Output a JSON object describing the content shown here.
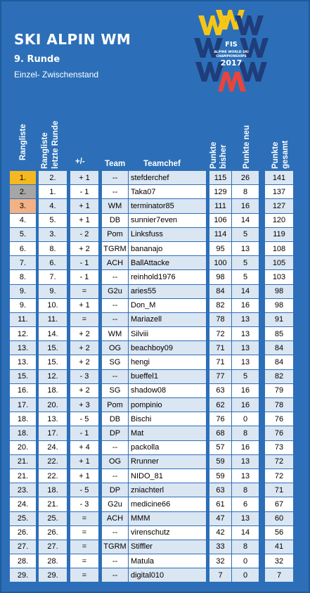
{
  "header": {
    "title": "SKI ALPIN WM",
    "round": "9. Runde",
    "subtitle": "Einzel- Zwischenstand"
  },
  "logo": {
    "top_text": "FIS",
    "line1": "ALPINE WORLD SKI",
    "line2": "CHAMPIONSHIPS",
    "year": "2017",
    "colors": {
      "w": "#f5c518",
      "m": "#e8453c",
      "ring": "#1f3d7a"
    }
  },
  "columns": {
    "rank": "Rangliste",
    "prev_rank_line1": "Rangliste",
    "prev_rank_line2": "letzte Runde",
    "diff": "+/-",
    "team": "Team",
    "chef": "Teamchef",
    "points_before_line1": "Punkte",
    "points_before_line2": "bisher",
    "points_new": "Punkte neu",
    "points_total_line1": "Punkte",
    "points_total_line2": "gesamt"
  },
  "medal_colors": {
    "gold": "#f5b820",
    "silver": "#a6a6a6",
    "bronze": "#f4b183"
  },
  "rows": [
    {
      "rank": "1.",
      "prev": "2.",
      "diff": "+ 1",
      "team": "--",
      "chef": "stefderchef",
      "before": "115",
      "new": "26",
      "total": "141",
      "medal": "gold"
    },
    {
      "rank": "2.",
      "prev": "1.",
      "diff": "- 1",
      "team": "--",
      "chef": "Taka07",
      "before": "129",
      "new": "8",
      "total": "137",
      "medal": "silver"
    },
    {
      "rank": "3.",
      "prev": "4.",
      "diff": "+ 1",
      "team": "WM",
      "chef": "terminator85",
      "before": "111",
      "new": "16",
      "total": "127",
      "medal": "bronze"
    },
    {
      "rank": "4.",
      "prev": "5.",
      "diff": "+ 1",
      "team": "DB",
      "chef": "sunnier7even",
      "before": "106",
      "new": "14",
      "total": "120",
      "medal": ""
    },
    {
      "rank": "5.",
      "prev": "3.",
      "diff": "- 2",
      "team": "Pom",
      "chef": "Linksfuss",
      "before": "114",
      "new": "5",
      "total": "119",
      "medal": ""
    },
    {
      "rank": "6.",
      "prev": "8.",
      "diff": "+ 2",
      "team": "TGRM",
      "chef": "bananajo",
      "before": "95",
      "new": "13",
      "total": "108",
      "medal": ""
    },
    {
      "rank": "7.",
      "prev": "6.",
      "diff": "- 1",
      "team": "ACH",
      "chef": "BallAttacke",
      "before": "100",
      "new": "5",
      "total": "105",
      "medal": ""
    },
    {
      "rank": "8.",
      "prev": "7.",
      "diff": "- 1",
      "team": "--",
      "chef": "reinhold1976",
      "before": "98",
      "new": "5",
      "total": "103",
      "medal": ""
    },
    {
      "rank": "9.",
      "prev": "9.",
      "diff": "=",
      "team": "G2u",
      "chef": "aries55",
      "before": "84",
      "new": "14",
      "total": "98",
      "medal": ""
    },
    {
      "rank": "9.",
      "prev": "10.",
      "diff": "+ 1",
      "team": "--",
      "chef": "Don_M",
      "before": "82",
      "new": "16",
      "total": "98",
      "medal": ""
    },
    {
      "rank": "11.",
      "prev": "11.",
      "diff": "=",
      "team": "--",
      "chef": "Mariazell",
      "before": "78",
      "new": "13",
      "total": "91",
      "medal": ""
    },
    {
      "rank": "12.",
      "prev": "14.",
      "diff": "+ 2",
      "team": "WM",
      "chef": "Silviii",
      "before": "72",
      "new": "13",
      "total": "85",
      "medal": ""
    },
    {
      "rank": "13.",
      "prev": "15.",
      "diff": "+ 2",
      "team": "OG",
      "chef": "beachboy09",
      "before": "71",
      "new": "13",
      "total": "84",
      "medal": ""
    },
    {
      "rank": "13.",
      "prev": "15.",
      "diff": "+ 2",
      "team": "SG",
      "chef": "hengi",
      "before": "71",
      "new": "13",
      "total": "84",
      "medal": ""
    },
    {
      "rank": "15.",
      "prev": "12.",
      "diff": "- 3",
      "team": "--",
      "chef": "bueffel1",
      "before": "77",
      "new": "5",
      "total": "82",
      "medal": ""
    },
    {
      "rank": "16.",
      "prev": "18.",
      "diff": "+ 2",
      "team": "SG",
      "chef": "shadow08",
      "before": "63",
      "new": "16",
      "total": "79",
      "medal": ""
    },
    {
      "rank": "17.",
      "prev": "20.",
      "diff": "+ 3",
      "team": "Pom",
      "chef": "pompinio",
      "before": "62",
      "new": "16",
      "total": "78",
      "medal": ""
    },
    {
      "rank": "18.",
      "prev": "13.",
      "diff": "- 5",
      "team": "DB",
      "chef": "Bischi",
      "before": "76",
      "new": "0",
      "total": "76",
      "medal": ""
    },
    {
      "rank": "18.",
      "prev": "17.",
      "diff": "- 1",
      "team": "DP",
      "chef": "Mat",
      "before": "68",
      "new": "8",
      "total": "76",
      "medal": ""
    },
    {
      "rank": "20.",
      "prev": "24.",
      "diff": "+ 4",
      "team": "--",
      "chef": "packolla",
      "before": "57",
      "new": "16",
      "total": "73",
      "medal": ""
    },
    {
      "rank": "21.",
      "prev": "22.",
      "diff": "+ 1",
      "team": "OG",
      "chef": "Rrunner",
      "before": "59",
      "new": "13",
      "total": "72",
      "medal": ""
    },
    {
      "rank": "21.",
      "prev": "22.",
      "diff": "+ 1",
      "team": "--",
      "chef": "NIDO_81",
      "before": "59",
      "new": "13",
      "total": "72",
      "medal": ""
    },
    {
      "rank": "23.",
      "prev": "18.",
      "diff": "- 5",
      "team": "DP",
      "chef": "zniachterl",
      "before": "63",
      "new": "8",
      "total": "71",
      "medal": ""
    },
    {
      "rank": "24.",
      "prev": "21.",
      "diff": "- 3",
      "team": "G2u",
      "chef": "medicine66",
      "before": "61",
      "new": "6",
      "total": "67",
      "medal": ""
    },
    {
      "rank": "25.",
      "prev": "25.",
      "diff": "=",
      "team": "ACH",
      "chef": "MMM",
      "before": "47",
      "new": "13",
      "total": "60",
      "medal": ""
    },
    {
      "rank": "26.",
      "prev": "26.",
      "diff": "=",
      "team": "--",
      "chef": "virenschutz",
      "before": "42",
      "new": "14",
      "total": "56",
      "medal": ""
    },
    {
      "rank": "27.",
      "prev": "27.",
      "diff": "=",
      "team": "TGRM",
      "chef": "Stiffler",
      "before": "33",
      "new": "8",
      "total": "41",
      "medal": ""
    },
    {
      "rank": "28.",
      "prev": "28.",
      "diff": "=",
      "team": "--",
      "chef": "Matula",
      "before": "32",
      "new": "0",
      "total": "32",
      "medal": ""
    },
    {
      "rank": "29.",
      "prev": "29.",
      "diff": "=",
      "team": "--",
      "chef": "digital010",
      "before": "7",
      "new": "0",
      "total": "7",
      "medal": ""
    }
  ]
}
